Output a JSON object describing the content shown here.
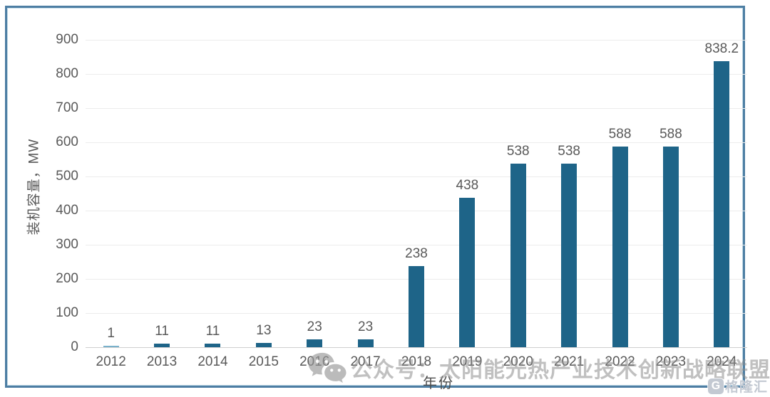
{
  "chart_data": {
    "type": "bar",
    "categories": [
      "2012",
      "2013",
      "2014",
      "2015",
      "2016",
      "2017",
      "2018",
      "2019",
      "2020",
      "2021",
      "2022",
      "2023",
      "2024"
    ],
    "values": [
      1,
      11,
      11,
      13,
      23,
      23,
      238,
      438,
      538,
      538,
      588,
      588,
      838.2
    ],
    "value_labels": [
      "1",
      "11",
      "11",
      "13",
      "23",
      "23",
      "238",
      "438",
      "538",
      "538",
      "588",
      "588",
      "838.2"
    ],
    "title": "",
    "xlabel": "年份",
    "ylabel": "装机容量，MW",
    "ylim": [
      0,
      900
    ],
    "yticks": [
      0,
      100,
      200,
      300,
      400,
      500,
      600,
      700,
      800,
      900
    ],
    "grid": true,
    "legend": "none",
    "bar_color": "#1e6488",
    "first_bar_color": "#7ab1cb",
    "grid_color": "#ececec",
    "axis_line_color": "#cfcfcf",
    "label_color": "#595959",
    "frame_border_color": "#4d7ea3"
  },
  "watermark": {
    "icon": "wechat-icon",
    "text": "公众号：太阳能光热产业技术创新战略联盟"
  },
  "brand": {
    "icon_letter": "G",
    "text": "格隆汇"
  }
}
